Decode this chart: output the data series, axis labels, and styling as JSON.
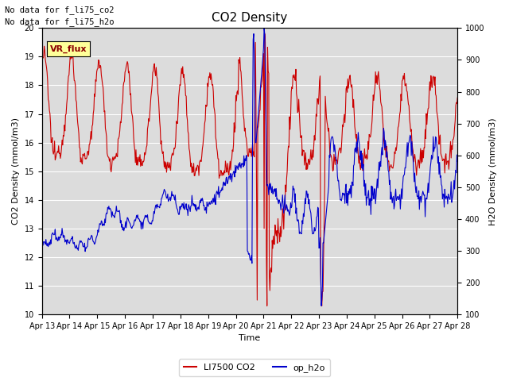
{
  "title": "CO2 Density",
  "ylabel_left": "CO2 Density (mmol/m3)",
  "ylabel_right": "H2O Density (mmol/m3)",
  "xlabel": "Time",
  "ylim_left": [
    10.0,
    20.0
  ],
  "ylim_right": [
    100,
    1000
  ],
  "yticks_left": [
    10.0,
    11.0,
    12.0,
    13.0,
    14.0,
    15.0,
    16.0,
    17.0,
    18.0,
    19.0,
    20.0
  ],
  "yticks_right": [
    100,
    200,
    300,
    400,
    500,
    600,
    700,
    800,
    900,
    1000
  ],
  "xtick_labels": [
    "Apr 13",
    "Apr 14",
    "Apr 15",
    "Apr 16",
    "Apr 17",
    "Apr 18",
    "Apr 19",
    "Apr 20",
    "Apr 21",
    "Apr 22",
    "Apr 23",
    "Apr 24",
    "Apr 25",
    "Apr 26",
    "Apr 27",
    "Apr 28"
  ],
  "annotation1": "No data for f_li75_co2",
  "annotation2": "No data for f_li75_h2o",
  "vr_flux_label": "VR_flux",
  "legend_label_red": "LI7500 CO2",
  "legend_label_blue": "op_h2o",
  "line_color_red": "#cc0000",
  "line_color_blue": "#0000cc",
  "bg_color": "#dcdcdc",
  "fig_bg_color": "#ffffff",
  "vr_flux_bg": "#ffff99",
  "figsize": [
    6.4,
    4.8
  ],
  "dpi": 100
}
